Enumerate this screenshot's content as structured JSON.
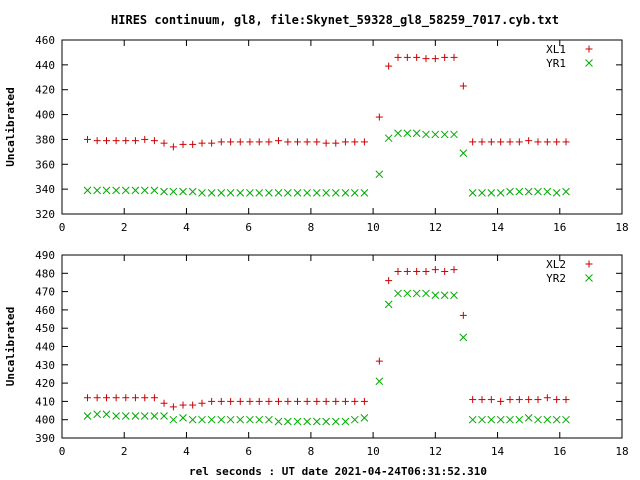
{
  "chart_data": [
    {
      "type": "scatter",
      "title": "HIRES continuum, gl8, file:Skynet_59328_gl8_58259_7017.cyb.txt",
      "xlabel": "",
      "ylabel": "Uncalibrated",
      "xlim": [
        0,
        18
      ],
      "ylim": [
        320,
        460
      ],
      "xticks": [
        0,
        2,
        4,
        6,
        8,
        10,
        12,
        14,
        16,
        18
      ],
      "yticks": [
        320,
        340,
        360,
        380,
        400,
        420,
        440,
        460
      ],
      "legend_position": "top-right",
      "x": [
        0.82,
        1.13,
        1.43,
        1.74,
        2.05,
        2.36,
        2.66,
        2.97,
        3.28,
        3.58,
        3.89,
        4.2,
        4.5,
        4.81,
        5.12,
        5.42,
        5.73,
        6.04,
        6.34,
        6.65,
        6.96,
        7.26,
        7.57,
        7.88,
        8.19,
        8.49,
        8.8,
        9.11,
        9.41,
        9.72,
        10.2,
        10.5,
        10.8,
        11.1,
        11.4,
        11.7,
        12.0,
        12.3,
        12.6,
        12.9,
        13.2,
        13.5,
        13.8,
        14.1,
        14.4,
        14.7,
        15.0,
        15.3,
        15.6,
        15.9,
        16.2
      ],
      "series": [
        {
          "name": "XL1",
          "color": "#cc0000",
          "marker": "plus",
          "values": [
            380,
            379,
            379,
            379,
            379,
            379,
            380,
            379,
            377,
            374,
            376,
            376,
            377,
            377,
            378,
            378,
            378,
            378,
            378,
            378,
            379,
            378,
            378,
            378,
            378,
            377,
            377,
            378,
            378,
            378,
            398,
            439,
            446,
            446,
            446,
            445,
            445,
            446,
            446,
            423,
            378,
            378,
            378,
            378,
            378,
            378,
            379,
            378,
            378,
            378,
            378
          ]
        },
        {
          "name": "YR1",
          "color": "#00aa00",
          "marker": "cross",
          "values": [
            339,
            339,
            339,
            339,
            339,
            339,
            339,
            339,
            338,
            338,
            338,
            338,
            337,
            337,
            337,
            337,
            337,
            337,
            337,
            337,
            337,
            337,
            337,
            337,
            337,
            337,
            337,
            337,
            337,
            337,
            352,
            381,
            385,
            385,
            385,
            384,
            384,
            384,
            384,
            369,
            337,
            337,
            337,
            337,
            338,
            338,
            338,
            338,
            338,
            337,
            338
          ]
        }
      ]
    },
    {
      "type": "scatter",
      "title": "",
      "xlabel": "rel seconds : UT date 2021-04-24T06:31:52.310",
      "ylabel": "Uncalibrated",
      "xlim": [
        0,
        18
      ],
      "ylim": [
        390,
        490
      ],
      "xticks": [
        0,
        2,
        4,
        6,
        8,
        10,
        12,
        14,
        16,
        18
      ],
      "yticks": [
        390,
        400,
        410,
        420,
        430,
        440,
        450,
        460,
        470,
        480,
        490
      ],
      "legend_position": "top-right",
      "x": [
        0.82,
        1.13,
        1.43,
        1.74,
        2.05,
        2.36,
        2.66,
        2.97,
        3.28,
        3.58,
        3.89,
        4.2,
        4.5,
        4.81,
        5.12,
        5.42,
        5.73,
        6.04,
        6.34,
        6.65,
        6.96,
        7.26,
        7.57,
        7.88,
        8.19,
        8.49,
        8.8,
        9.11,
        9.41,
        9.72,
        10.2,
        10.5,
        10.8,
        11.1,
        11.4,
        11.7,
        12.0,
        12.3,
        12.6,
        12.9,
        13.2,
        13.5,
        13.8,
        14.1,
        14.4,
        14.7,
        15.0,
        15.3,
        15.6,
        15.9,
        16.2
      ],
      "series": [
        {
          "name": "XL2",
          "color": "#cc0000",
          "marker": "plus",
          "values": [
            412,
            412,
            412,
            412,
            412,
            412,
            412,
            412,
            409,
            407,
            408,
            408,
            409,
            410,
            410,
            410,
            410,
            410,
            410,
            410,
            410,
            410,
            410,
            410,
            410,
            410,
            410,
            410,
            410,
            410,
            432,
            476,
            481,
            481,
            481,
            481,
            482,
            481,
            482,
            457,
            411,
            411,
            411,
            410,
            411,
            411,
            411,
            411,
            412,
            411,
            411
          ]
        },
        {
          "name": "YR2",
          "color": "#00aa00",
          "marker": "cross",
          "values": [
            402,
            403,
            403,
            402,
            402,
            402,
            402,
            402,
            402,
            400,
            401,
            400,
            400,
            400,
            400,
            400,
            400,
            400,
            400,
            400,
            399,
            399,
            399,
            399,
            399,
            399,
            399,
            399,
            400,
            401,
            421,
            463,
            469,
            469,
            469,
            469,
            468,
            468,
            468,
            445,
            400,
            400,
            400,
            400,
            400,
            400,
            401,
            400,
            400,
            400,
            400
          ]
        }
      ]
    }
  ]
}
